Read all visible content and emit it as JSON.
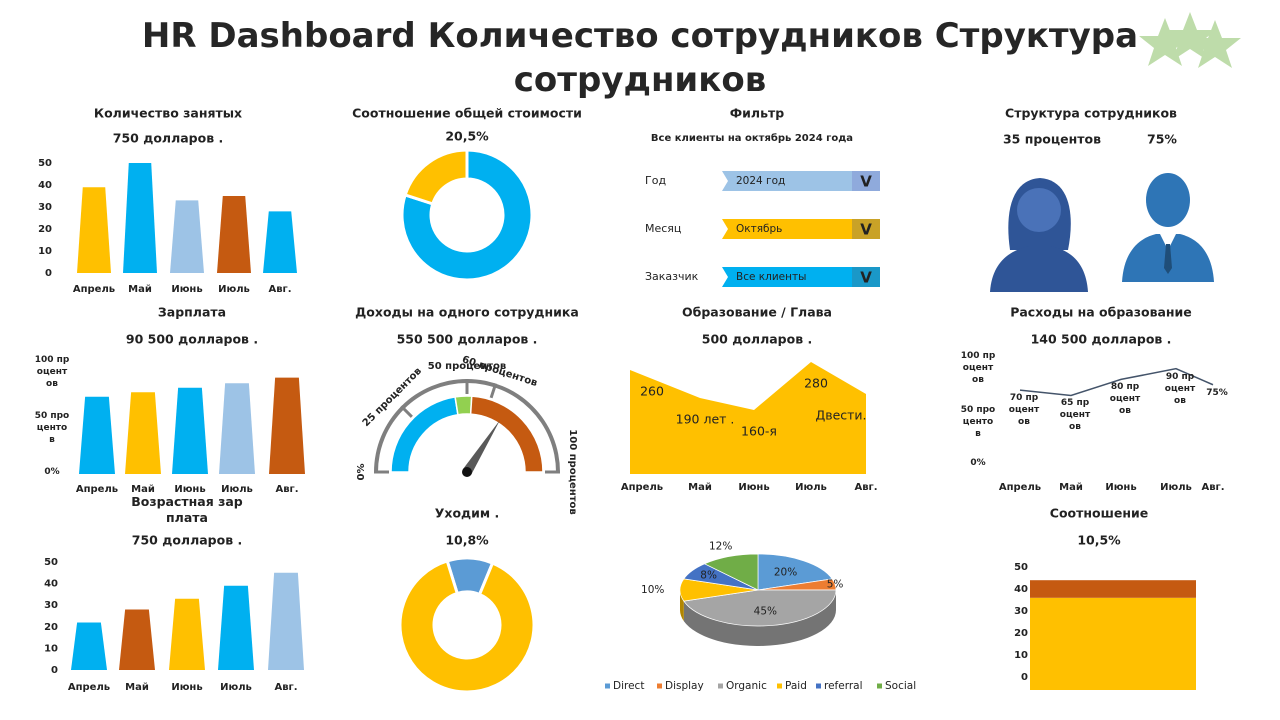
{
  "title": "HR Dashboard Количество сотрудников Структура сотрудников",
  "filter": {
    "title": "Фильтр",
    "subtitle": "Все клиенты на октябрь 2024 года",
    "rows": [
      {
        "label": "Год",
        "value": "2024 год",
        "icon": "V"
      },
      {
        "label": "Месяц",
        "value": "Октябрь",
        "icon": "V"
      },
      {
        "label": "Заказчик",
        "value": "Все клиенты",
        "icon": "V"
      }
    ]
  },
  "structure": {
    "title": "Структура сотрудников",
    "labels": [
      "35 процентов",
      "75%"
    ]
  },
  "chart_data": [
    {
      "type": "bar",
      "title": "Количество занятых",
      "subtitle": "750 долларов .",
      "categories": [
        "Апрель",
        "Май",
        "Июнь",
        "Июль",
        "Авг."
      ],
      "values": [
        39,
        50,
        33,
        35,
        28
      ],
      "colors": [
        "#FFC000",
        "#00B0F0",
        "#9DC3E6",
        "#C55A11",
        "#00B0F0"
      ],
      "ylim": [
        0,
        50
      ],
      "yticks": [
        0,
        10,
        20,
        30,
        40,
        50
      ]
    },
    {
      "type": "donut",
      "title": "Соотношение общей стоимости",
      "subtitle": "20,5%",
      "values": [
        80,
        20
      ],
      "colors": [
        "#00B0F0",
        "#FFC000"
      ]
    },
    {
      "type": "bar",
      "title": "Зарплата",
      "subtitle": "90 500 долларов .",
      "categories": [
        "Апрель",
        "Май",
        "Июнь",
        "Июль",
        "Авг."
      ],
      "values": [
        69,
        73,
        77,
        81,
        86
      ],
      "colors": [
        "#00B0F0",
        "#FFC000",
        "#00B0F0",
        "#9DC3E6",
        "#C55A11"
      ],
      "ylim": [
        0,
        100
      ],
      "yticks": [
        {
          "value": 0,
          "label": "0%"
        },
        {
          "value": 50,
          "label": "50 процентов"
        },
        {
          "value": 100,
          "label": "100 процентов"
        }
      ]
    },
    {
      "type": "gauge",
      "title": "Доходы на одного сотрудника",
      "subtitle": "550 500 долларов .",
      "xlim": [
        0,
        100
      ],
      "ticks": [
        {
          "value": 0,
          "label": "0%"
        },
        {
          "value": 25,
          "label": "25 процентов"
        },
        {
          "value": 50,
          "label": "50 процентов"
        },
        {
          "value": 60,
          "label": "60 процентов"
        },
        {
          "value": 100,
          "label": "100 процентов"
        }
      ],
      "segments": [
        {
          "value": 45,
          "color": "#00B0F0"
        },
        {
          "value": 7,
          "color": "#92D050"
        },
        {
          "value": 48,
          "color": "#C55A11"
        }
      ],
      "needle": 68
    },
    {
      "type": "area",
      "title": "Образование / Глава",
      "subtitle": "500 долларов .",
      "categories": [
        "Апрель",
        "Май",
        "Июнь",
        "Июль",
        "Авг."
      ],
      "values": [
        260,
        190,
        160,
        280,
        200
      ],
      "value_labels": [
        "260",
        "190 лет .",
        "160-я",
        "280",
        "Двести."
      ],
      "color": "#FFC000"
    },
    {
      "type": "line",
      "title": "Расходы на образование",
      "subtitle": "140 500 долларов .",
      "categories": [
        "Апрель",
        "Май",
        "Июнь",
        "Июль",
        "Авг."
      ],
      "values": [
        70,
        65,
        80,
        90,
        75
      ],
      "value_labels": [
        "70 процентов",
        "65 процентов",
        "80 процентов",
        "90 процентов",
        "75%"
      ],
      "color": "#44546A",
      "ylim": [
        0,
        100
      ],
      "yticks": [
        {
          "value": 0,
          "label": "0%"
        },
        {
          "value": 50,
          "label": "50 процентов"
        },
        {
          "value": 100,
          "label": "100 процентов"
        }
      ]
    },
    {
      "type": "bar",
      "title": "Возрастная зарплата",
      "subtitle": "750 долларов .",
      "categories": [
        "Апрель",
        "Май",
        "Июнь",
        "Июль",
        "Авг."
      ],
      "values": [
        22,
        28,
        33,
        39,
        45
      ],
      "colors": [
        "#00B0F0",
        "#C55A11",
        "#FFC000",
        "#00B0F0",
        "#9DC3E6"
      ],
      "ylim": [
        0,
        50
      ],
      "yticks": [
        0,
        10,
        20,
        30,
        40,
        50
      ]
    },
    {
      "type": "donut",
      "title": "Уходим .",
      "subtitle": "10,8%",
      "values": [
        11,
        89
      ],
      "colors": [
        "#5B9BD5",
        "#FFC000"
      ]
    },
    {
      "type": "pie",
      "categories": [
        "Direct",
        "Display",
        "Organic",
        "Paid",
        "referral",
        "Social"
      ],
      "values": [
        20,
        5,
        45,
        10,
        8,
        12
      ],
      "value_labels": [
        "20%",
        "5%",
        "45%",
        "10%",
        "8%",
        "12%"
      ],
      "colors": [
        "#5B9BD5",
        "#ED7D31",
        "#A5A5A5",
        "#FFC000",
        "#4472C4",
        "#70AD47"
      ]
    },
    {
      "type": "stacked_bar",
      "title": "Соотношение",
      "subtitle": "10,5%",
      "categories": [
        null
      ],
      "series": [
        {
          "color": "#FFC000",
          "values": [
            36
          ]
        },
        {
          "color": "#C55A11",
          "values": [
            8
          ]
        }
      ],
      "ylim": [
        0,
        50
      ],
      "yticks": [
        0,
        10,
        20,
        30,
        40,
        50
      ]
    }
  ]
}
